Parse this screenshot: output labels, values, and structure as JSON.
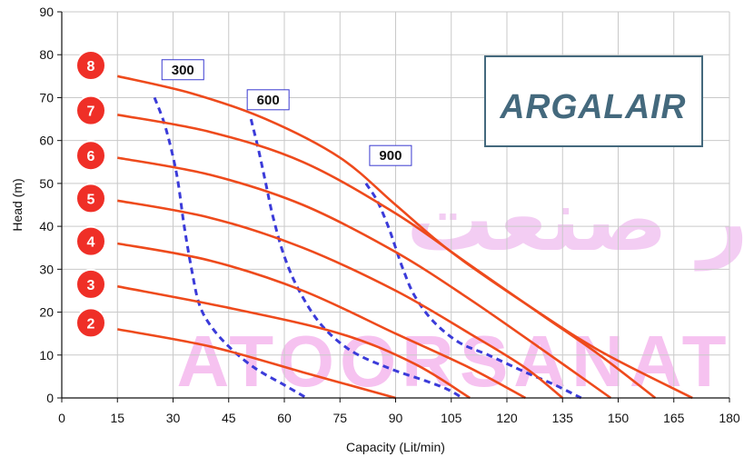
{
  "chart_data": {
    "type": "line",
    "title": "",
    "xlabel": "Capacity (Lit/min)",
    "ylabel": "Head (m)",
    "xlim": [
      0,
      180
    ],
    "ylim": [
      0,
      90
    ],
    "x_ticks": [
      0,
      15,
      30,
      45,
      60,
      75,
      90,
      105,
      120,
      135,
      150,
      165,
      180
    ],
    "y_ticks": [
      0,
      10,
      20,
      30,
      40,
      50,
      60,
      70,
      80,
      90
    ],
    "grid": true,
    "curve_color": "#ee4a1c",
    "efficiency_color": "#3b3bd9",
    "badge_color": "#ef2f27",
    "series": [
      {
        "label": "2",
        "label_y": 17.5,
        "x": [
          15,
          40,
          65,
          90
        ],
        "y": [
          16,
          12,
          6,
          0
        ]
      },
      {
        "label": "3",
        "label_y": 26.5,
        "x": [
          15,
          45,
          75,
          95,
          110
        ],
        "y": [
          26,
          21,
          15,
          8,
          0
        ]
      },
      {
        "label": "4",
        "label_y": 36.5,
        "x": [
          15,
          40,
          65,
          90,
          110,
          125
        ],
        "y": [
          36,
          32,
          25,
          15,
          7,
          0
        ]
      },
      {
        "label": "5",
        "label_y": 46.5,
        "x": [
          15,
          40,
          65,
          90,
          110,
          125,
          135
        ],
        "y": [
          46,
          42,
          35,
          25,
          15,
          7,
          0
        ]
      },
      {
        "label": "6",
        "label_y": 56.5,
        "x": [
          15,
          40,
          65,
          90,
          110,
          130,
          148
        ],
        "y": [
          56,
          52,
          45,
          34,
          23,
          11,
          0
        ]
      },
      {
        "label": "7",
        "label_y": 67,
        "x": [
          15,
          40,
          65,
          90,
          110,
          130,
          145,
          160
        ],
        "y": [
          66,
          62,
          55,
          43,
          31,
          19,
          10,
          0
        ]
      },
      {
        "label": "8",
        "label_y": 77.5,
        "x": [
          15,
          35,
          55,
          75,
          90,
          105,
          125,
          145,
          170
        ],
        "y": [
          75,
          71,
          65,
          56,
          45,
          34,
          22,
          11,
          0
        ]
      }
    ],
    "efficiency_lines": [
      {
        "label": "300",
        "label_x": 27,
        "label_y": 76.5,
        "x": [
          25,
          28,
          31,
          33,
          35,
          37,
          40,
          45,
          52,
          60,
          66
        ],
        "y": [
          70,
          63,
          52,
          40,
          30,
          22,
          17,
          12,
          7,
          3,
          0
        ]
      },
      {
        "label": "600",
        "label_x": 50,
        "label_y": 69.5,
        "x": [
          51,
          53,
          55,
          57,
          60,
          64,
          70,
          78,
          88,
          98,
          104,
          108
        ],
        "y": [
          65,
          58,
          50,
          42,
          33,
          25,
          17,
          11,
          7,
          4,
          2,
          0
        ]
      },
      {
        "label": "900",
        "label_x": 83,
        "label_y": 56.5,
        "x": [
          82,
          85,
          88,
          90,
          92,
          95,
          100,
          107,
          115,
          125,
          133,
          140
        ],
        "y": [
          50,
          46,
          40,
          35,
          30,
          24,
          18,
          13,
          10,
          6,
          3,
          0
        ]
      }
    ]
  },
  "logo": {
    "text": "ARGALAIR",
    "color": "#44697d"
  },
  "watermark": {
    "arabic": "آتور صنعت",
    "latin": "ATOORSANAT"
  }
}
